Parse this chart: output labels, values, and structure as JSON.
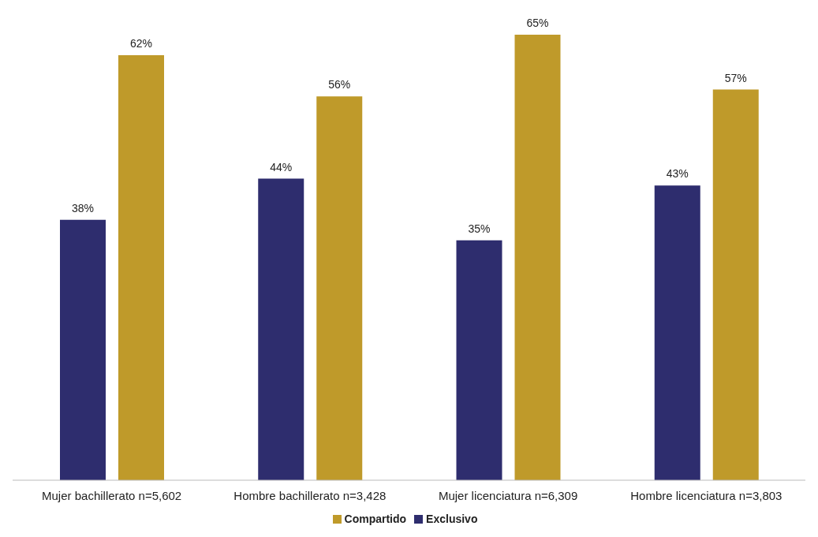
{
  "chart_data": {
    "type": "bar",
    "categories": [
      "Mujer bachillerato n=5,602",
      "Hombre bachillerato n=3,428",
      "Mujer licenciatura n=6,309",
      "Hombre licenciatura n=3,803"
    ],
    "series": [
      {
        "name": "Exclusivo",
        "color": "#2e2d6e",
        "values": [
          38,
          44,
          35,
          43
        ],
        "value_labels": [
          "38%",
          "44%",
          "35%",
          "43%"
        ]
      },
      {
        "name": "Compartido",
        "color": "#bf9a2a",
        "values": [
          62,
          56,
          65,
          57
        ],
        "value_labels": [
          "62%",
          "56%",
          "65%",
          "57%"
        ]
      }
    ],
    "legend": "bottom"
  }
}
